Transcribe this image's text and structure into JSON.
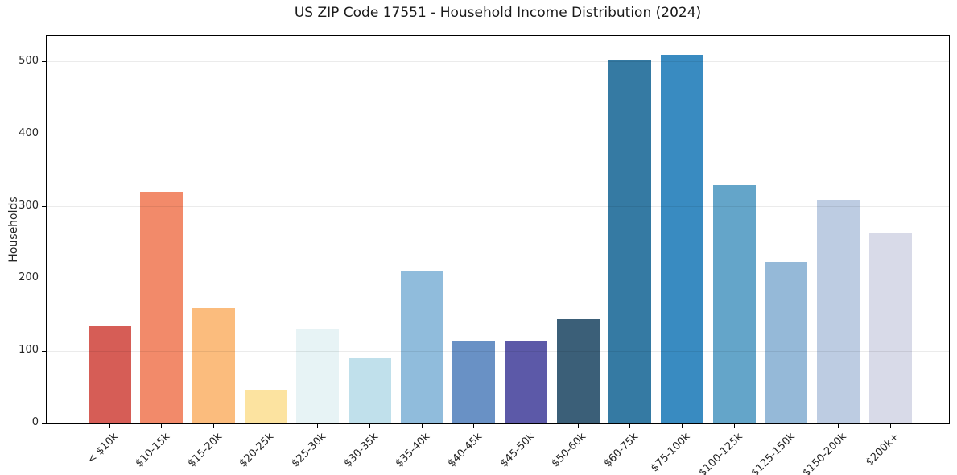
{
  "chart_data": {
    "type": "bar",
    "title": "US ZIP Code 17551 - Household Income Distribution (2024)",
    "xlabel": "",
    "ylabel": "Households",
    "categories": [
      "< $10k",
      "$10-15k",
      "$15-20k",
      "$20-25k",
      "$25-30k",
      "$30-35k",
      "$35-40k",
      "$40-45k",
      "$45-50k",
      "$50-60k",
      "$60-75k",
      "$75-100k",
      "$100-125k",
      "$125-150k",
      "$150-200k",
      "$200k+"
    ],
    "values": [
      135,
      319,
      159,
      46,
      130,
      90,
      212,
      114,
      114,
      145,
      502,
      510,
      330,
      224,
      308,
      263
    ],
    "bar_colors": [
      "#d65d56",
      "#f28a6a",
      "#fbbc7d",
      "#fce3a0",
      "#e7f3f5",
      "#c0e0eb",
      "#90bcdc",
      "#6991c5",
      "#5c59a8",
      "#3b5f78",
      "#357aa3",
      "#398bc1",
      "#64a5c9",
      "#95b9d8",
      "#bdcce2",
      "#d8dae8"
    ],
    "yticks": [
      0,
      100,
      200,
      300,
      400,
      500
    ],
    "ylim": [
      0,
      535.5
    ],
    "grid": "horizontal-only",
    "legend": "none",
    "x_tick_rotation": 45
  },
  "colors": {
    "background": "#ffffff",
    "spine": "#000000",
    "gridline": "rgba(0,0,0,0.08)",
    "title_text": "#1a1a1a",
    "tick_text": "#262626"
  }
}
